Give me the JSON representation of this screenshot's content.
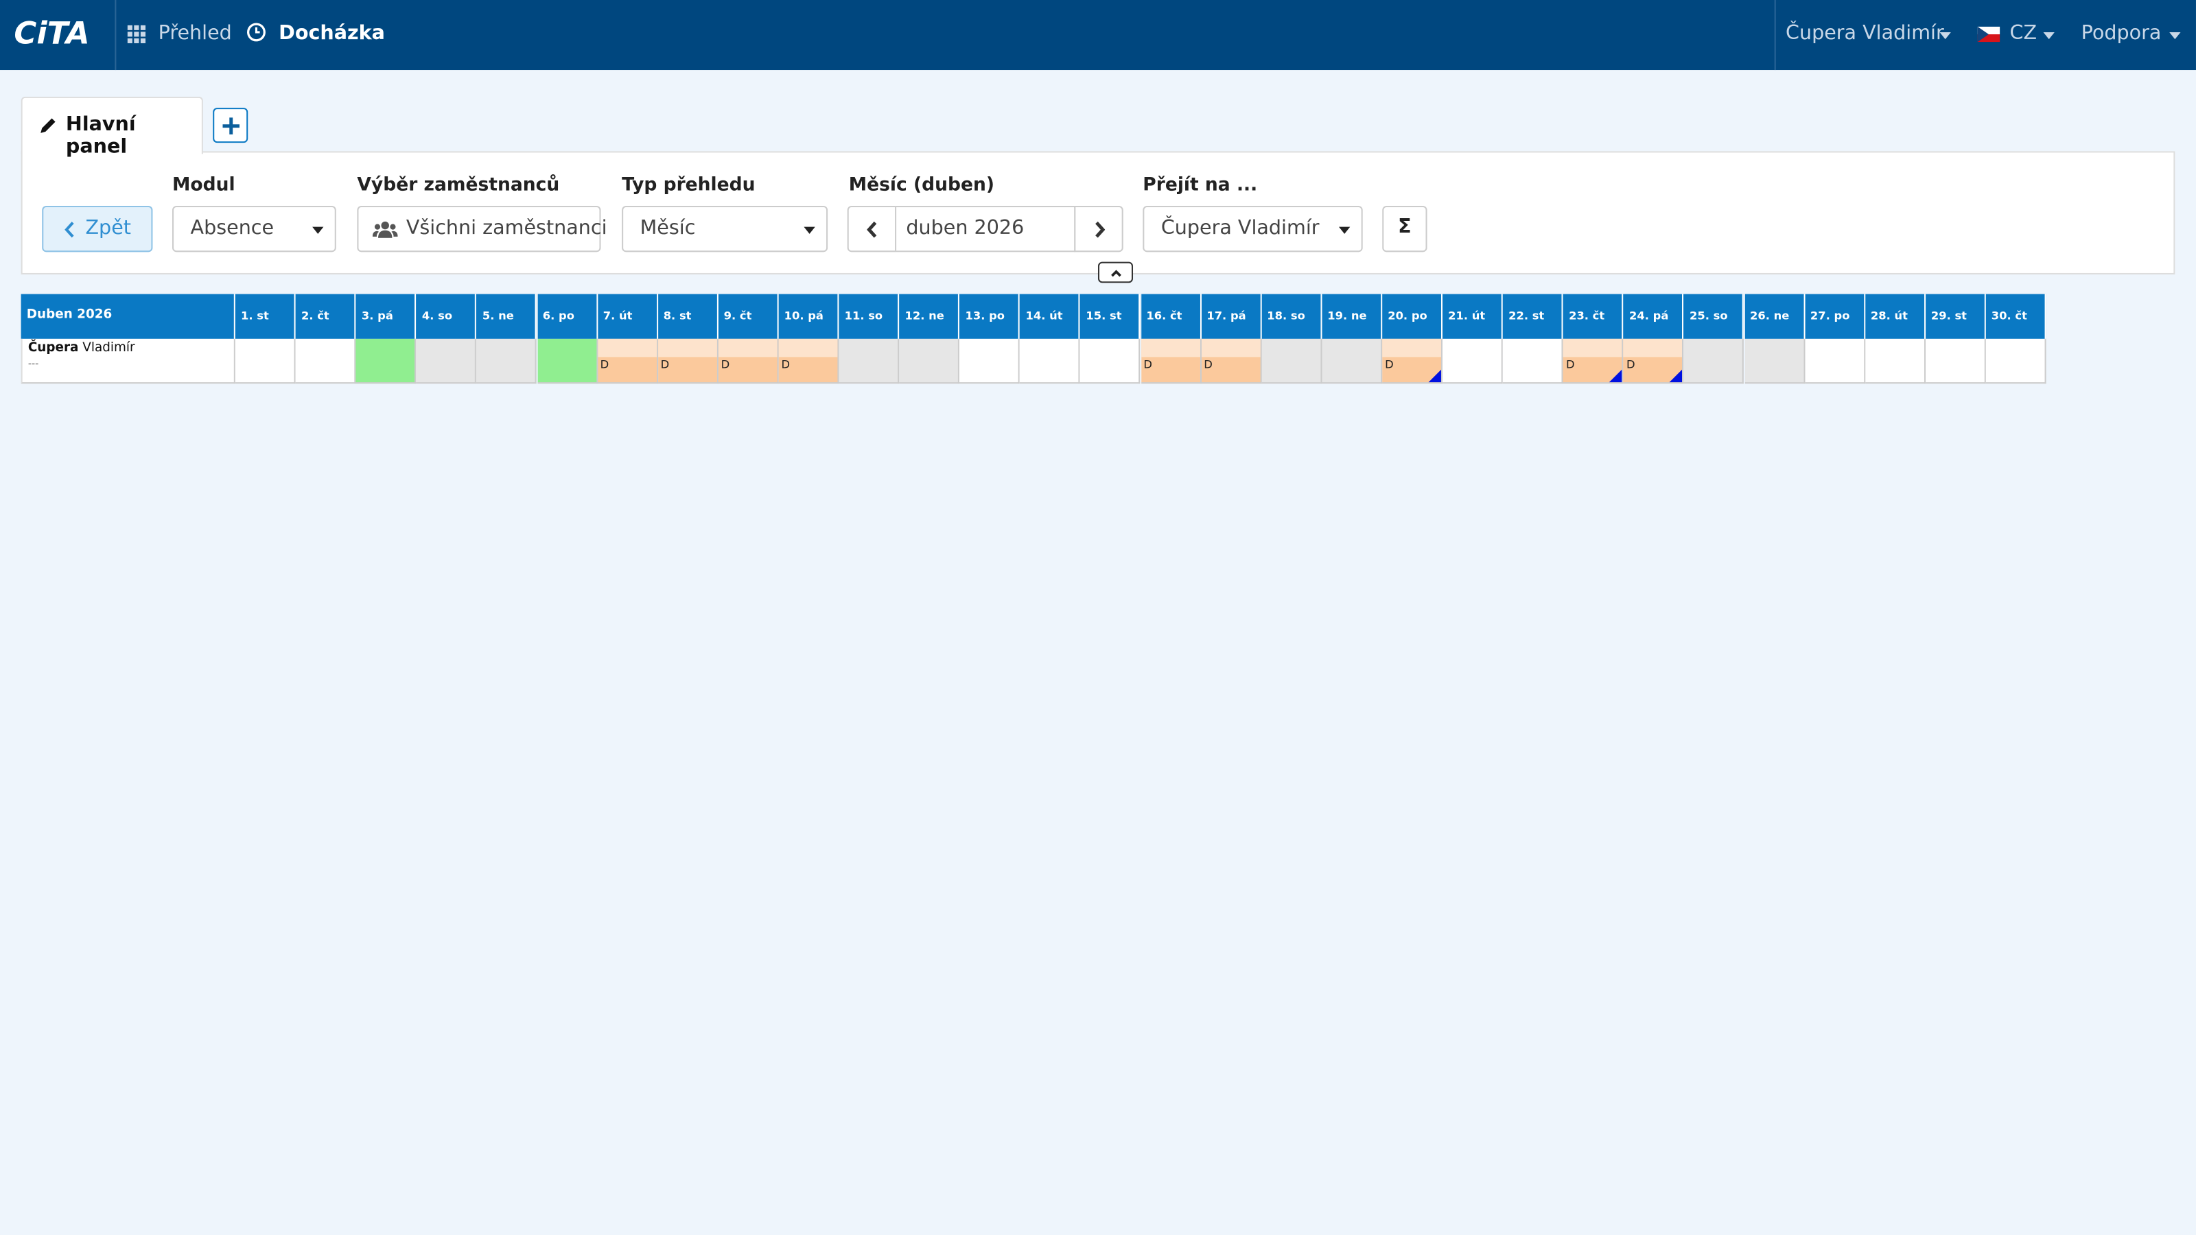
{
  "logo": "CiTA",
  "nav": {
    "items": [
      "Přehled",
      "Docházka"
    ],
    "user": "Čupera Vladimír",
    "lang": "CZ",
    "support": "Podpora"
  },
  "tabs": {
    "active": "Hlavní panel"
  },
  "filters": {
    "back": "Zpět",
    "fields": [
      {
        "label": "Modul",
        "value": "Absence"
      },
      {
        "label": "Výběr zaměstnanců",
        "value": "Všichni zaměstnanci"
      },
      {
        "label": "Typ přehledu",
        "value": "Měsíc"
      },
      {
        "label": "Měsíc (duben)",
        "value": "duben 2026"
      },
      {
        "label": "Přejít na ...",
        "value": "Čupera Vladimír"
      }
    ],
    "sum": "Σ"
  },
  "table": {
    "title": "Duben 2026",
    "days": [
      "1. st",
      "2. čt",
      "3. pá",
      "4. so",
      "5. ne",
      "6. po",
      "7. út",
      "8. st",
      "9. čt",
      "10. pá",
      "11. so",
      "12. ne",
      "13. po",
      "14. út",
      "15. st",
      "16. čt",
      "17. pá",
      "18. so",
      "19. ne",
      "20. po",
      "21. út",
      "22. st",
      "23. čt",
      "24. pá",
      "25. so",
      "26. ne",
      "27. po",
      "28. út",
      "29. st",
      "30. čt"
    ],
    "employee": {
      "surname": "Čupera",
      "name": "Vladimír",
      "note": "---",
      "cells": [
        {
          "color": "#ffffff"
        },
        {
          "color": "#ffffff"
        },
        {
          "color": "#90ee90"
        },
        {
          "color": "#e6e6e6"
        },
        {
          "color": "#e6e6e6"
        },
        {
          "color": "#90ee90"
        },
        {
          "color": "#fbc99c",
          "text": "D"
        },
        {
          "color": "#fbc99c",
          "text": "D"
        },
        {
          "color": "#fbc99c",
          "text": "D"
        },
        {
          "color": "#fbc99c",
          "text": "D"
        },
        {
          "color": "#e6e6e6"
        },
        {
          "color": "#e6e6e6"
        },
        {
          "color": "#ffffff"
        },
        {
          "color": "#ffffff"
        },
        {
          "color": "#ffffff"
        },
        {
          "color": "#fbc99c",
          "text": "D"
        },
        {
          "color": "#fbc99c",
          "text": "D"
        },
        {
          "color": "#e6e6e6"
        },
        {
          "color": "#e6e6e6"
        },
        {
          "color": "#fbc99c",
          "text": "D",
          "flag": true
        },
        {
          "color": "#ffffff"
        },
        {
          "color": "#ffffff"
        },
        {
          "color": "#fbc99c",
          "text": "D",
          "flag": true
        },
        {
          "color": "#fbc99c",
          "text": "D",
          "flag": true
        },
        {
          "color": "#e6e6e6"
        },
        {
          "color": "#e6e6e6"
        },
        {
          "color": "#ffffff"
        },
        {
          "color": "#ffffff"
        },
        {
          "color": "#ffffff"
        },
        {
          "color": "#ffffff"
        }
      ]
    }
  }
}
